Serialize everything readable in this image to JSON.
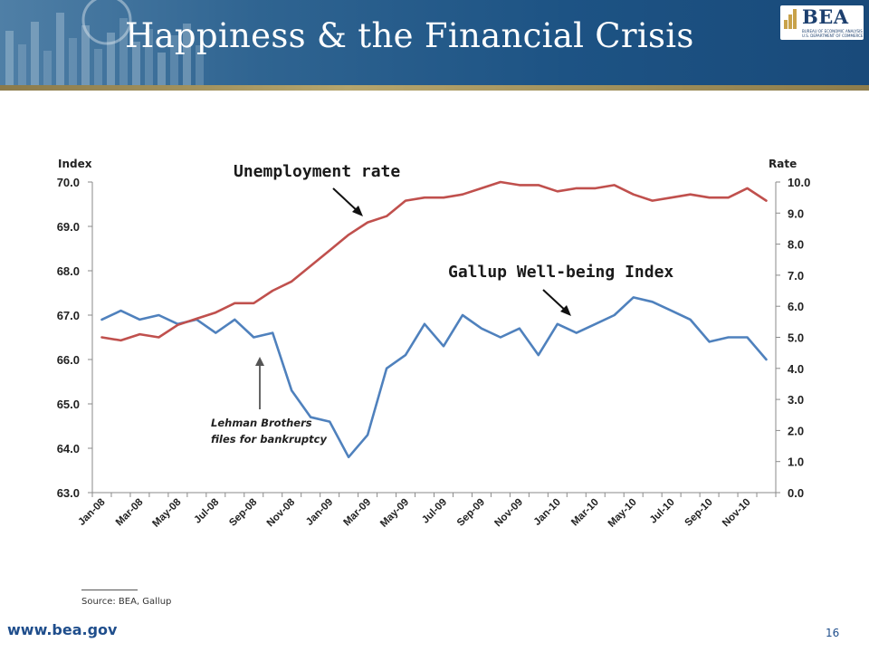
{
  "slide": {
    "title": "Happiness & the Financial Crisis",
    "logo_text": "BEA",
    "logo_subtitle_1": "BUREAU OF ECONOMIC ANALYSIS",
    "logo_subtitle_2": "U.S. DEPARTMENT OF COMMERCE",
    "source": "Source: BEA, Gallup",
    "website": "www.bea.gov",
    "page_number": "16"
  },
  "colors": {
    "unemployment": "#c0504d",
    "wellbeing": "#4f81bd",
    "title_text": "#ffffff",
    "website": "#1f4e8c"
  },
  "chart_data": {
    "type": "line",
    "title": "",
    "x": [
      "Jan-08",
      "Feb-08",
      "Mar-08",
      "Apr-08",
      "May-08",
      "Jun-08",
      "Jul-08",
      "Aug-08",
      "Sep-08",
      "Oct-08",
      "Nov-08",
      "Dec-08",
      "Jan-09",
      "Feb-09",
      "Mar-09",
      "Apr-09",
      "May-09",
      "Jun-09",
      "Jul-09",
      "Aug-09",
      "Sep-09",
      "Oct-09",
      "Nov-09",
      "Dec-09",
      "Jan-10",
      "Feb-10",
      "Mar-10",
      "Apr-10",
      "May-10",
      "Jun-10",
      "Jul-10",
      "Aug-10",
      "Sep-10",
      "Oct-10",
      "Nov-10",
      "Dec-10"
    ],
    "x_tick_labels": [
      "Jan-08",
      "Mar-08",
      "May-08",
      "Jul-08",
      "Sep-08",
      "Nov-08",
      "Jan-09",
      "Mar-09",
      "May-09",
      "Jul-09",
      "Sep-09",
      "Nov-09",
      "Jan-10",
      "Mar-10",
      "May-10",
      "Jul-10",
      "Sep-10",
      "Nov-10"
    ],
    "left_axis": {
      "title": "Index",
      "range": [
        63.0,
        70.0
      ],
      "ticks": [
        "63.0",
        "64.0",
        "65.0",
        "66.0",
        "67.0",
        "68.0",
        "69.0",
        "70.0"
      ]
    },
    "right_axis": {
      "title": "Rate",
      "range": [
        0.0,
        10.0
      ],
      "ticks": [
        "0.0",
        "1.0",
        "2.0",
        "3.0",
        "4.0",
        "5.0",
        "6.0",
        "7.0",
        "8.0",
        "9.0",
        "10.0"
      ]
    },
    "series": [
      {
        "name": "Gallup Well-being Index",
        "axis": "left",
        "values": [
          66.9,
          67.1,
          66.9,
          67.0,
          66.8,
          66.9,
          66.6,
          66.9,
          66.5,
          66.6,
          65.3,
          64.7,
          64.6,
          63.8,
          64.3,
          65.8,
          66.1,
          66.8,
          66.3,
          67.0,
          66.7,
          66.5,
          66.7,
          66.1,
          66.8,
          66.6,
          66.8,
          67.0,
          67.4,
          67.3,
          67.1,
          66.9,
          66.4,
          66.5,
          66.5,
          66.0
        ]
      },
      {
        "name": "Unemployment rate",
        "axis": "right",
        "values": [
          5.0,
          4.9,
          5.1,
          5.0,
          5.4,
          5.6,
          5.8,
          6.1,
          6.1,
          6.5,
          6.8,
          7.3,
          7.8,
          8.3,
          8.7,
          8.9,
          9.4,
          9.5,
          9.5,
          9.6,
          9.8,
          10.0,
          9.9,
          9.9,
          9.7,
          9.8,
          9.8,
          9.9,
          9.6,
          9.4,
          9.5,
          9.6,
          9.5,
          9.5,
          9.8,
          9.4
        ]
      }
    ],
    "annotations": [
      {
        "text_lines": [
          "Lehman Brothers",
          "files for bankruptcy"
        ],
        "points_to": "Sep-08"
      }
    ],
    "grid": false,
    "legend": "none"
  }
}
